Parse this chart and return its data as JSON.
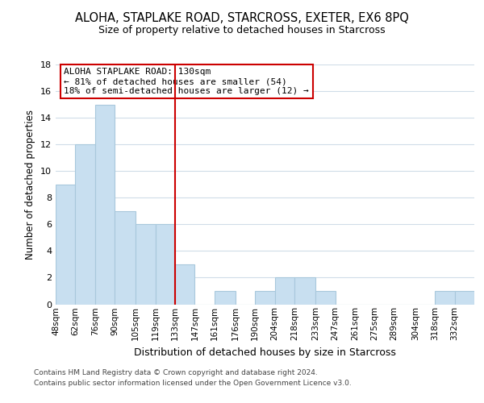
{
  "title1": "ALOHA, STAPLAKE ROAD, STARCROSS, EXETER, EX6 8PQ",
  "title2": "Size of property relative to detached houses in Starcross",
  "xlabel": "Distribution of detached houses by size in Starcross",
  "ylabel": "Number of detached properties",
  "bin_labels": [
    "48sqm",
    "62sqm",
    "76sqm",
    "90sqm",
    "105sqm",
    "119sqm",
    "133sqm",
    "147sqm",
    "161sqm",
    "176sqm",
    "190sqm",
    "204sqm",
    "218sqm",
    "233sqm",
    "247sqm",
    "261sqm",
    "275sqm",
    "289sqm",
    "304sqm",
    "318sqm",
    "332sqm"
  ],
  "bin_edges": [
    48,
    62,
    76,
    90,
    105,
    119,
    133,
    147,
    161,
    176,
    190,
    204,
    218,
    233,
    247,
    261,
    275,
    289,
    304,
    318,
    332,
    346
  ],
  "counts": [
    9,
    12,
    15,
    7,
    6,
    6,
    3,
    0,
    1,
    0,
    1,
    2,
    2,
    1,
    0,
    0,
    0,
    0,
    0,
    1,
    1
  ],
  "bar_color": "#c8dff0",
  "bar_edge_color": "#a8c8dc",
  "ref_line_x": 133,
  "ref_line_color": "#cc0000",
  "annotation_lines": [
    "ALOHA STAPLAKE ROAD: 130sqm",
    "← 81% of detached houses are smaller (54)",
    "18% of semi-detached houses are larger (12) →"
  ],
  "annotation_box_color": "#ffffff",
  "annotation_box_edge": "#cc0000",
  "ylim": [
    0,
    18
  ],
  "yticks": [
    0,
    2,
    4,
    6,
    8,
    10,
    12,
    14,
    16,
    18
  ],
  "footer_line1": "Contains HM Land Registry data © Crown copyright and database right 2024.",
  "footer_line2": "Contains public sector information licensed under the Open Government Licence v3.0.",
  "background_color": "#ffffff",
  "grid_color": "#d0dde8"
}
